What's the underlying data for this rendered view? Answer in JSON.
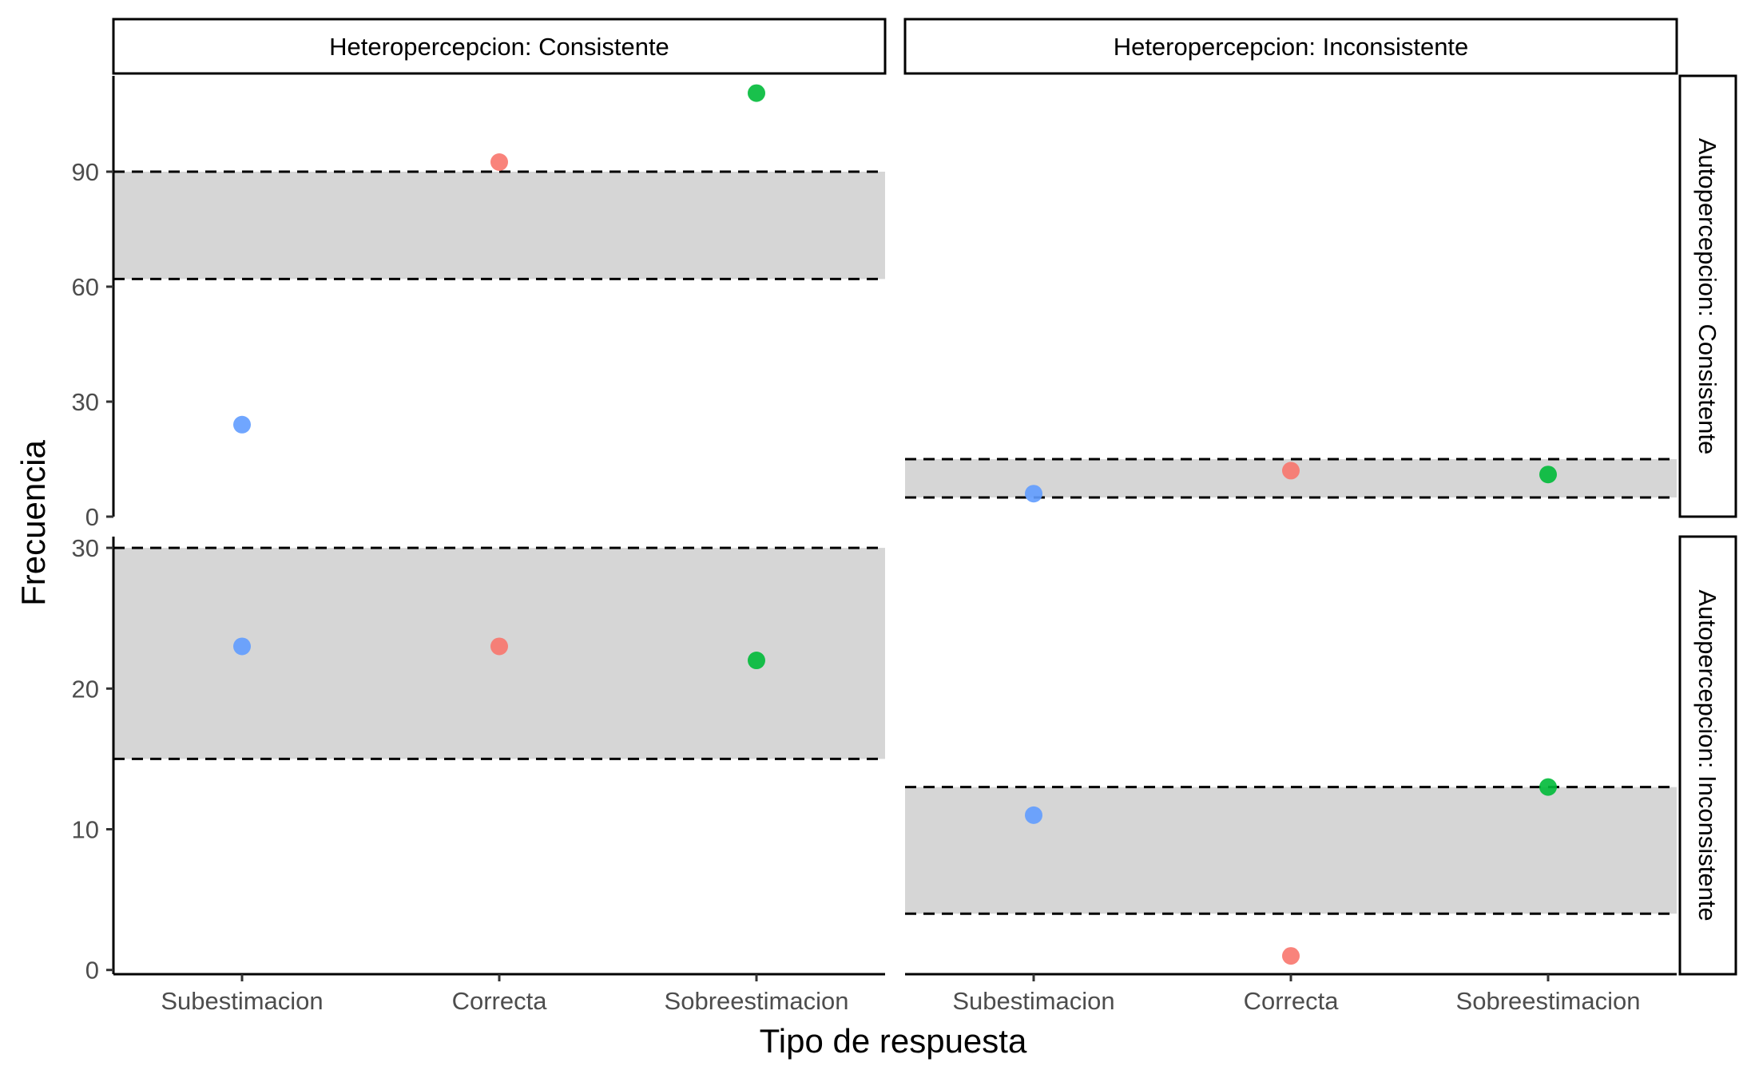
{
  "chart_data": {
    "type": "scatter",
    "xlabel": "Tipo de respuesta",
    "ylabel": "Frecuencia",
    "categories": [
      "Subestimacion",
      "Correcta",
      "Sobreestimacion"
    ],
    "column_facets": [
      "Heteropercepcion: Consistente",
      "Heteropercepcion: Inconsistente"
    ],
    "row_facets": [
      "Autopercepcion: Consistente",
      "Autopercepcion: Inconsistente"
    ],
    "colors": {
      "Subestimacion": "#619CFF",
      "Correcta": "#F8766D",
      "Sobreestimacion": "#00BA38",
      "band": "#d6d6d6"
    },
    "rows": [
      {
        "ylim": [
          0,
          115
        ],
        "yticks": [
          0,
          30,
          60,
          90
        ]
      },
      {
        "ylim": [
          -0.3,
          30.8
        ],
        "yticks": [
          0,
          10,
          20,
          30
        ]
      }
    ],
    "panels": [
      {
        "row": 0,
        "col": 0,
        "values": [
          24,
          92.5,
          110.5
        ],
        "band": [
          62,
          90
        ]
      },
      {
        "row": 0,
        "col": 1,
        "values": [
          6,
          12,
          11
        ],
        "band": [
          5,
          15
        ]
      },
      {
        "row": 1,
        "col": 0,
        "values": [
          23,
          23,
          22
        ],
        "band": [
          15,
          30
        ]
      },
      {
        "row": 1,
        "col": 1,
        "values": [
          11,
          1,
          13
        ],
        "band": [
          4,
          13
        ]
      }
    ]
  }
}
